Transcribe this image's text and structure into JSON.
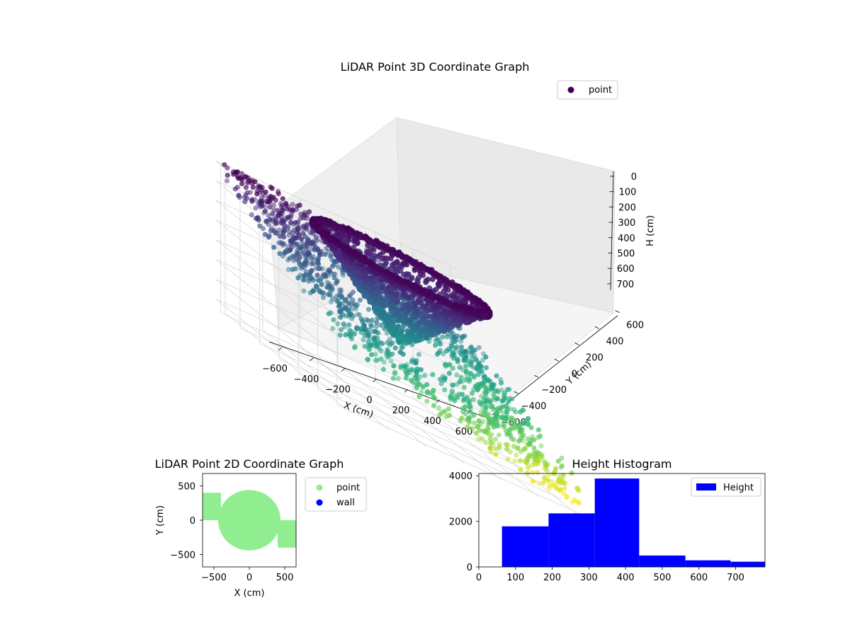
{
  "figure": {
    "background": "#ffffff"
  },
  "chart_data": [
    {
      "type": "scatter3d",
      "title": "LiDAR Point 3D Coordinate Graph",
      "xlabel": "X (cm)",
      "ylabel": "Y (cm)",
      "zlabel": "H (cm)",
      "xticks": [
        -600,
        -400,
        -200,
        0,
        200,
        400,
        600
      ],
      "yticks": [
        -600,
        -400,
        -200,
        0,
        200,
        400,
        600
      ],
      "zticks": [
        0,
        100,
        200,
        300,
        400,
        500,
        600,
        700
      ],
      "xlim": [
        -650,
        650
      ],
      "ylim": [
        -650,
        650
      ],
      "zlim": [
        0,
        750
      ],
      "z_inverted": true,
      "colormap": "viridis",
      "legend": {
        "label": "point",
        "color": "#440154",
        "location": "top-right"
      },
      "description_series": [
        {
          "name": "outer scatter",
          "x_range": [
            -650,
            650
          ],
          "y_range": [
            -650,
            650
          ],
          "h_range": [
            0,
            700
          ]
        },
        {
          "name": "dense bowl",
          "center": [
            0,
            0
          ],
          "radius": 420,
          "h_range": [
            0,
            400
          ]
        }
      ]
    },
    {
      "type": "scatter",
      "title": "LiDAR Point 2D Coordinate Graph",
      "xlabel": "X (cm)",
      "ylabel": "Y (cm)",
      "xticks": [
        -500,
        0,
        500
      ],
      "yticks": [
        -500,
        0,
        500
      ],
      "xlim": [
        -660,
        660
      ],
      "ylim": [
        -680,
        680
      ],
      "series": [
        {
          "name": "point",
          "color": "#90ee90"
        },
        {
          "name": "wall",
          "color": "#0000ff"
        }
      ],
      "regions": [
        {
          "shape": "circle",
          "center": [
            0,
            0
          ],
          "radius": 440
        },
        {
          "shape": "rect",
          "x": [
            -660,
            -400
          ],
          "y": [
            0,
            400
          ]
        },
        {
          "shape": "rect",
          "x": [
            400,
            660
          ],
          "y": [
            -400,
            0
          ]
        }
      ],
      "legend": "upper right outside"
    },
    {
      "type": "histogram",
      "title": "Height Histogram",
      "xticks": [
        0,
        100,
        200,
        300,
        400,
        500,
        600,
        700
      ],
      "yticks": [
        0,
        2000,
        4000
      ],
      "xlim": [
        0,
        780
      ],
      "ylim": [
        0,
        4100
      ],
      "bins": [
        {
          "x0": 63,
          "x1": 190,
          "count": 1780
        },
        {
          "x0": 190,
          "x1": 316,
          "count": 2350
        },
        {
          "x0": 316,
          "x1": 437,
          "count": 3880
        },
        {
          "x0": 437,
          "x1": 563,
          "count": 500
        },
        {
          "x0": 563,
          "x1": 686,
          "count": 290
        },
        {
          "x0": 686,
          "x1": 780,
          "count": 230
        }
      ],
      "color": "#0000ff",
      "legend": {
        "label": "Height",
        "color": "#0000ff",
        "location": "top-right"
      }
    }
  ]
}
